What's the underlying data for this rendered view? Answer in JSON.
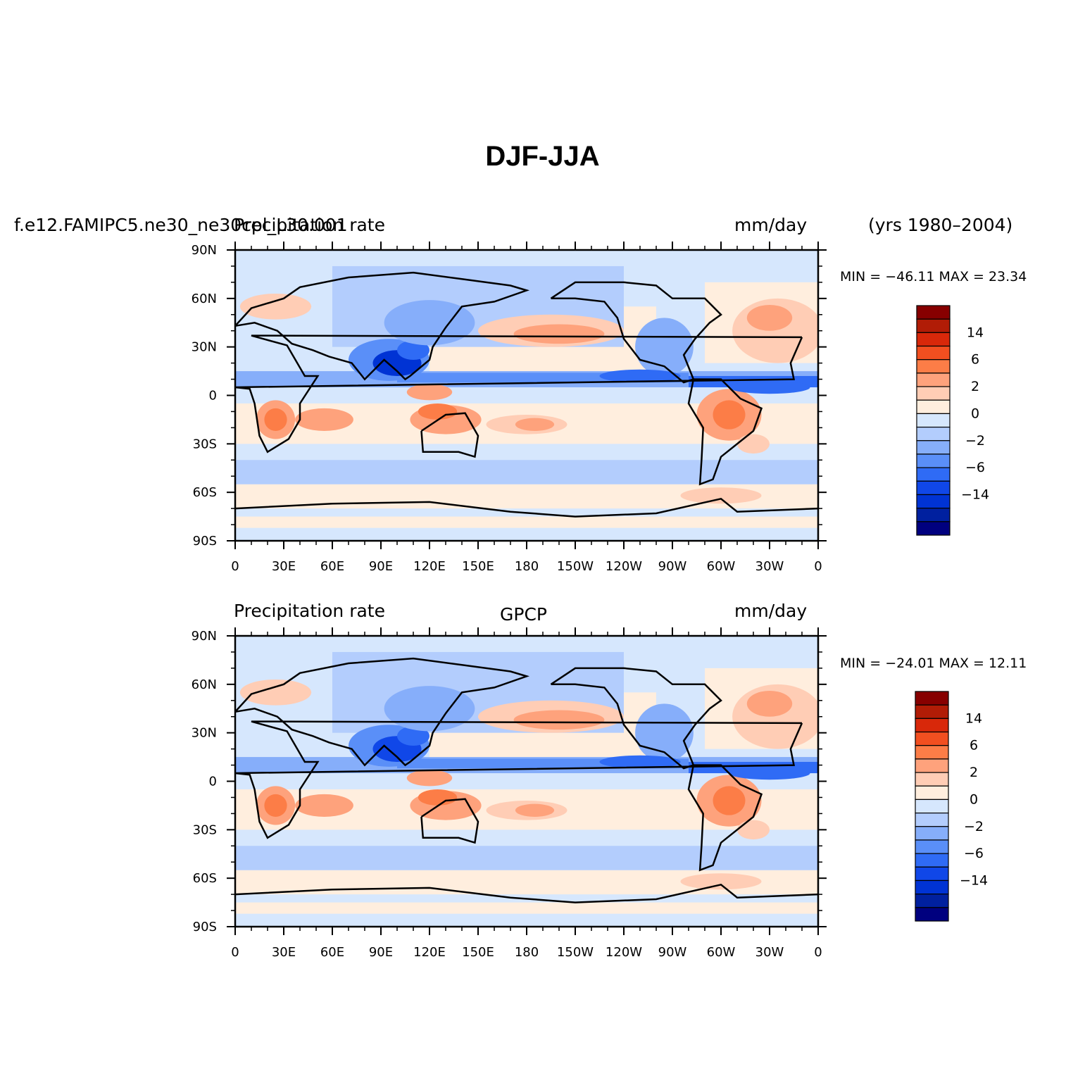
{
  "title": "DJF-JJA",
  "years": "(yrs 1980–2004)",
  "panels": [
    {
      "case": "f.e12.FAMIPC5.ne30_ne30cpl_L30.001",
      "variable": "Precipitation rate",
      "center": "",
      "units": "mm/day",
      "min_max": "MIN = −46.11 MAX =  23.34"
    },
    {
      "case": "",
      "variable": "Precipitation rate",
      "center": "GPCP",
      "units": "mm/day",
      "min_max": "MIN = −24.01 MAX =  12.11"
    }
  ],
  "chart_data": {
    "type": "heatmap",
    "projection": "cylindrical equidistant, global",
    "x_ticks": [
      "0",
      "30E",
      "60E",
      "90E",
      "120E",
      "150E",
      "180",
      "150W",
      "120W",
      "90W",
      "60W",
      "30W",
      "0"
    ],
    "y_ticks": [
      "90N",
      "60N",
      "30N",
      "0",
      "30S",
      "60S",
      "90S"
    ],
    "colorbar": {
      "labels": [
        "14",
        "6",
        "2",
        "0",
        "−2",
        "−6",
        "−14"
      ],
      "colors": [
        "#00007f",
        "#00209f",
        "#0033d4",
        "#1047e8",
        "#2f6bf5",
        "#5a8ff8",
        "#86aefa",
        "#b3cdfd",
        "#d6e7fd",
        "#ffeede",
        "#ffcdb5",
        "#fea27c",
        "#fc7d47",
        "#f24f20",
        "#d8280a",
        "#b11c06",
        "#870000"
      ]
    },
    "fields": [
      {
        "name": "f.e12.FAMIPC5.ne30_ne30cpl_L30.001",
        "min": -46.11,
        "max": 23.34
      },
      {
        "name": "GPCP",
        "min": -24.01,
        "max": 12.11
      }
    ]
  }
}
